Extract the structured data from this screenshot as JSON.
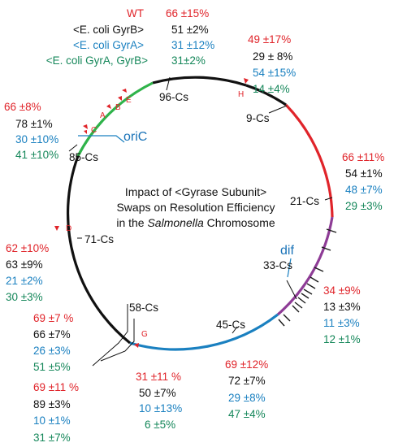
{
  "colors": {
    "wt": "#e0242a",
    "gyrb": "#111111",
    "gyra": "#1a80c0",
    "gyrab": "#15875a",
    "arc_black": "#111111",
    "arc_red": "#e0242a",
    "arc_purple": "#8e3c96",
    "arc_blue": "#1a80c0",
    "arc_green": "#2fb34a"
  },
  "legend": {
    "wt": "WT",
    "gyrb": "<E. coli GyrB>",
    "gyra": "<E. coli GyrA>",
    "gyrab": "<E. coli GyrA, GyrB>"
  },
  "title": {
    "line1": "Impact of <Gyrase Subunit>",
    "line2": "Swaps on Resolution Efficiency",
    "line3_pre": "in the ",
    "line3_italic": "Salmonella",
    "line3_post": " Chromosome"
  },
  "features": {
    "oric": "oriC",
    "dif": "dif"
  },
  "markers": [
    "A",
    "B",
    "C",
    "D",
    "E",
    "G",
    "H"
  ],
  "sites": {
    "cs96": {
      "label": "96-Cs",
      "wt": "66 ±15%",
      "gyrb": "51 ±2%",
      "gyra": "31 ±12%",
      "gyrab": "31±2%"
    },
    "cs9": {
      "label": "9-Cs",
      "wt": "49 ±17%",
      "gyrb": "29 ± 8%",
      "gyra": "54 ±15%",
      "gyrab": "14 ±4%"
    },
    "cs85": {
      "label": "85-Cs",
      "wt": "66 ±8%",
      "gyrb": "78 ±1%",
      "gyra": "30 ±10%",
      "gyrab": "41 ±10%"
    },
    "cs21": {
      "label": "21-Cs",
      "wt": "66 ±11%",
      "gyrb": "54 ±1%",
      "gyra": "48 ±7%",
      "gyrab": "29 ±3%"
    },
    "cs71": {
      "label": "71-Cs",
      "wt": "62 ±10%",
      "gyrb": "63 ±9%",
      "gyra": "21 ±2%",
      "gyrab": "30 ±3%"
    },
    "cs33": {
      "label": "33-Cs",
      "wt": "34 ±9%",
      "gyrb": "13 ±3%",
      "gyra": "11 ±3%",
      "gyrab": "12 ±1%"
    },
    "cs58a": {
      "wt": "69 ±7 %",
      "gyrb": "66 ±7%",
      "gyra": "26 ±3%",
      "gyrab": "51 ±5%"
    },
    "cs58": {
      "label": "58-Cs",
      "wt": "69 ±11 %",
      "gyrb": "89 ±3%",
      "gyra": "10 ±1%",
      "gyrab": "31 ±7%"
    },
    "cs45": {
      "label": "45-Cs",
      "wt": "69 ±12%",
      "gyrb": "72 ±7%",
      "gyra": "29 ±8%",
      "gyrab": "47 ±4%"
    },
    "csg": {
      "wt": "31 ±11 %",
      "gyrb": "50 ±7%",
      "gyra": "10 ±13%",
      "gyrab": "6 ±5%"
    }
  }
}
